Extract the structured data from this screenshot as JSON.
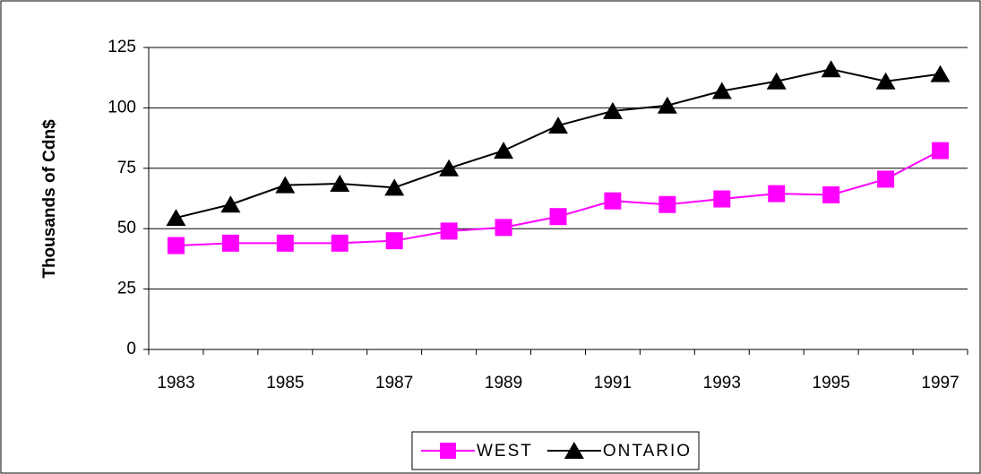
{
  "chart_data": {
    "type": "line",
    "y_label": "Thousands of Cdn$",
    "categories": [
      "1983",
      null,
      "1985",
      null,
      "1987",
      null,
      "1989",
      null,
      "1991",
      null,
      "1993",
      null,
      "1995",
      null,
      "1997"
    ],
    "series": [
      {
        "name": "WEST",
        "color": "#ff00ff",
        "marker": "square",
        "values": [
          43,
          44,
          44,
          44,
          45,
          49,
          50.5,
          55,
          61.5,
          60,
          62.3,
          64.5,
          64,
          70.5,
          82.3
        ]
      },
      {
        "name": "ONTARIO",
        "color": "#000000",
        "marker": "triangle",
        "values": [
          54.5,
          60,
          68,
          68.6,
          67,
          75,
          82.3,
          92.7,
          98.7,
          101,
          107,
          111,
          116,
          111,
          114
        ]
      }
    ],
    "ylim": [
      0,
      125
    ],
    "yticks": [
      0,
      25,
      50,
      75,
      100,
      125
    ],
    "grid": true,
    "legend": "bottom"
  }
}
